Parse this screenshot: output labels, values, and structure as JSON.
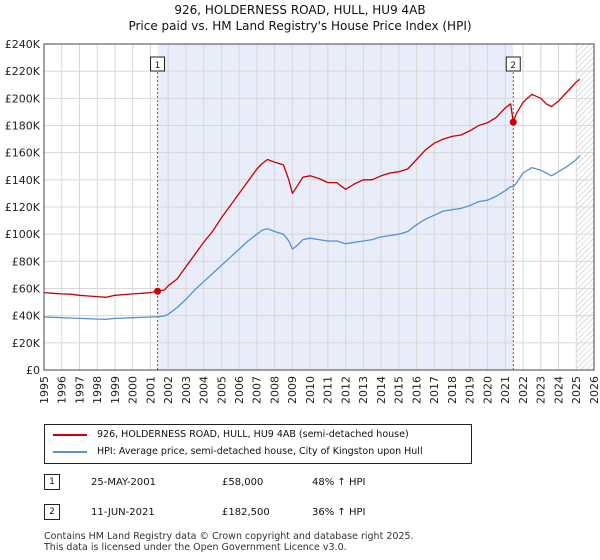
{
  "chart_data": {
    "type": "line",
    "title": "926, HOLDERNESS ROAD, HULL, HU9 4AB",
    "subtitle": "Price paid vs. HM Land Registry's House Price Index (HPI)",
    "xlabel": "",
    "ylabel": "",
    "xlim": [
      1995,
      2026
    ],
    "ylim": [
      0,
      240000
    ],
    "yticks": [
      0,
      20000,
      40000,
      60000,
      80000,
      100000,
      120000,
      140000,
      160000,
      180000,
      200000,
      220000,
      240000
    ],
    "ytick_labels": [
      "£0",
      "£20K",
      "£40K",
      "£60K",
      "£80K",
      "£100K",
      "£120K",
      "£140K",
      "£160K",
      "£180K",
      "£200K",
      "£220K",
      "£240K"
    ],
    "xtick_labels": [
      "1995",
      "1996",
      "1997",
      "1998",
      "1999",
      "2000",
      "2001",
      "2002",
      "2003",
      "2004",
      "2005",
      "2006",
      "2007",
      "2008",
      "2009",
      "2010",
      "2011",
      "2012",
      "2013",
      "2014",
      "2015",
      "2016",
      "2017",
      "2018",
      "2019",
      "2020",
      "2021",
      "2022",
      "2023",
      "2024",
      "2025",
      "2026"
    ],
    "grid": true,
    "shaded_span": [
      2001.4,
      2021.45
    ],
    "hatched_from": 2025.0,
    "series": [
      {
        "name": "926, HOLDERNESS ROAD, HULL, HU9 4AB (semi-detached house)",
        "color": "#cc0000",
        "x": [
          1995,
          1995.5,
          1996,
          1996.5,
          1997,
          1997.5,
          1998,
          1998.5,
          1999,
          1999.5,
          2000,
          2000.5,
          2001,
          2001.4,
          2001.8,
          2002,
          2002.5,
          2003,
          2003.5,
          2004,
          2004.5,
          2005,
          2005.5,
          2006,
          2006.5,
          2007,
          2007.3,
          2007.6,
          2008,
          2008.5,
          2008.8,
          2009,
          2009.3,
          2009.6,
          2010,
          2010.5,
          2011,
          2011.5,
          2012,
          2012.5,
          2013,
          2013.5,
          2014,
          2014.5,
          2015,
          2015.5,
          2016,
          2016.5,
          2017,
          2017.5,
          2018,
          2018.5,
          2019,
          2019.5,
          2020,
          2020.5,
          2021,
          2021.3,
          2021.45,
          2021.6,
          2022,
          2022.5,
          2023,
          2023.3,
          2023.6,
          2024,
          2024.5,
          2025,
          2025.2
        ],
        "values": [
          57000,
          56500,
          56000,
          55800,
          55000,
          54500,
          54000,
          53500,
          55000,
          55500,
          56000,
          56500,
          57000,
          58000,
          59000,
          62000,
          67000,
          76000,
          85000,
          94000,
          102000,
          112000,
          121000,
          130000,
          139000,
          148000,
          152000,
          155000,
          153000,
          151000,
          140000,
          130000,
          136000,
          142000,
          143000,
          141000,
          138000,
          138000,
          133000,
          137000,
          140000,
          140000,
          143000,
          145000,
          146000,
          148000,
          155000,
          162000,
          167000,
          170000,
          172000,
          173000,
          176000,
          180000,
          182000,
          186000,
          193000,
          196000,
          182500,
          188000,
          197000,
          203000,
          200000,
          196000,
          194000,
          198000,
          205000,
          212000,
          214000
        ]
      },
      {
        "name": "HPI: Average price, semi-detached house, City of Kingston upon Hull",
        "color": "#5b8fd6",
        "x": [
          1995,
          1995.5,
          1996,
          1996.5,
          1997,
          1997.5,
          1998,
          1998.5,
          1999,
          1999.5,
          2000,
          2000.5,
          2001,
          2001.4,
          2001.8,
          2002,
          2002.5,
          2003,
          2003.5,
          2004,
          2004.5,
          2005,
          2005.5,
          2006,
          2006.5,
          2007,
          2007.3,
          2007.6,
          2008,
          2008.5,
          2008.8,
          2009,
          2009.3,
          2009.6,
          2010,
          2010.5,
          2011,
          2011.5,
          2012,
          2012.5,
          2013,
          2013.5,
          2014,
          2014.5,
          2015,
          2015.5,
          2016,
          2016.5,
          2017,
          2017.5,
          2018,
          2018.5,
          2019,
          2019.5,
          2020,
          2020.5,
          2021,
          2021.3,
          2021.45,
          2021.6,
          2022,
          2022.5,
          2023,
          2023.3,
          2023.6,
          2024,
          2024.5,
          2025,
          2025.2
        ],
        "values": [
          39000,
          38800,
          38500,
          38300,
          38000,
          37800,
          37500,
          37300,
          38000,
          38200,
          38500,
          38700,
          39000,
          39200,
          39800,
          41000,
          46000,
          52000,
          59000,
          65000,
          71000,
          77000,
          83000,
          89000,
          95000,
          100000,
          103000,
          104000,
          102000,
          100000,
          95000,
          89000,
          92000,
          96000,
          97000,
          96000,
          95000,
          95000,
          93000,
          94000,
          95000,
          96000,
          98000,
          99000,
          100000,
          102000,
          107000,
          111000,
          114000,
          117000,
          118000,
          119000,
          121000,
          124000,
          125000,
          128000,
          132000,
          135000,
          135000,
          137000,
          145000,
          149000,
          147000,
          145000,
          143000,
          146000,
          150000,
          155000,
          158000
        ]
      }
    ],
    "sales": [
      {
        "label": "1",
        "x": 2001.4,
        "value": 58000
      },
      {
        "label": "2",
        "x": 2021.45,
        "value": 182500
      }
    ]
  },
  "legend": {
    "entries": [
      {
        "label": "926, HOLDERNESS ROAD, HULL, HU9 4AB (semi-detached house)",
        "color": "#cc0000"
      },
      {
        "label": "HPI: Average price, semi-detached house, City of Kingston upon Hull",
        "color": "#5b8fd6"
      }
    ]
  },
  "transactions": [
    {
      "num": "1",
      "date": "25-MAY-2001",
      "price": "£58,000",
      "hpi": "48% ↑ HPI"
    },
    {
      "num": "2",
      "date": "11-JUN-2021",
      "price": "£182,500",
      "hpi": "36% ↑ HPI"
    }
  ],
  "footer": {
    "line1": "Contains HM Land Registry data © Crown copyright and database right 2025.",
    "line2": "This data is licensed under the Open Government Licence v3.0."
  }
}
